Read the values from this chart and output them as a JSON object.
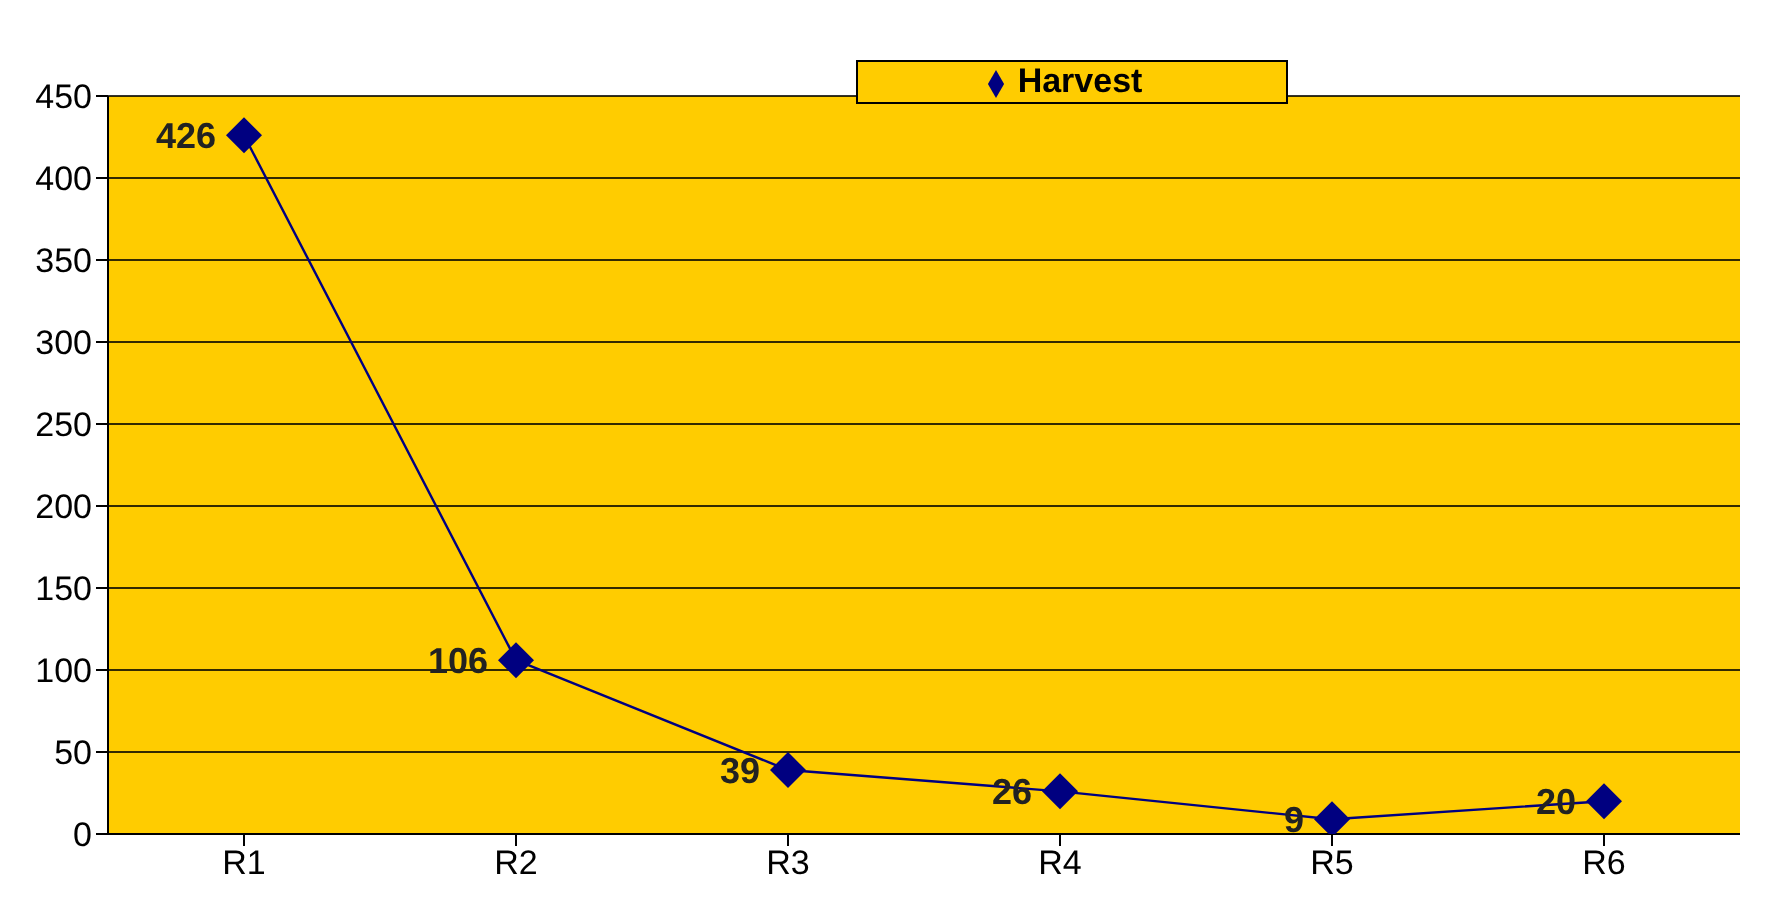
{
  "chart_data": {
    "type": "line",
    "categories": [
      "R1",
      "R2",
      "R3",
      "R4",
      "R5",
      "R6"
    ],
    "series": [
      {
        "name": "Harvest",
        "color": "#000080",
        "values": [
          426,
          106,
          39,
          26,
          9,
          20
        ]
      }
    ],
    "ylim": [
      0,
      450
    ],
    "yticks": [
      0,
      50,
      100,
      150,
      200,
      250,
      300,
      350,
      400,
      450
    ],
    "grid": "y",
    "legend": "top",
    "marker": "diamond",
    "line_style": "solid",
    "data_labels": true
  }
}
